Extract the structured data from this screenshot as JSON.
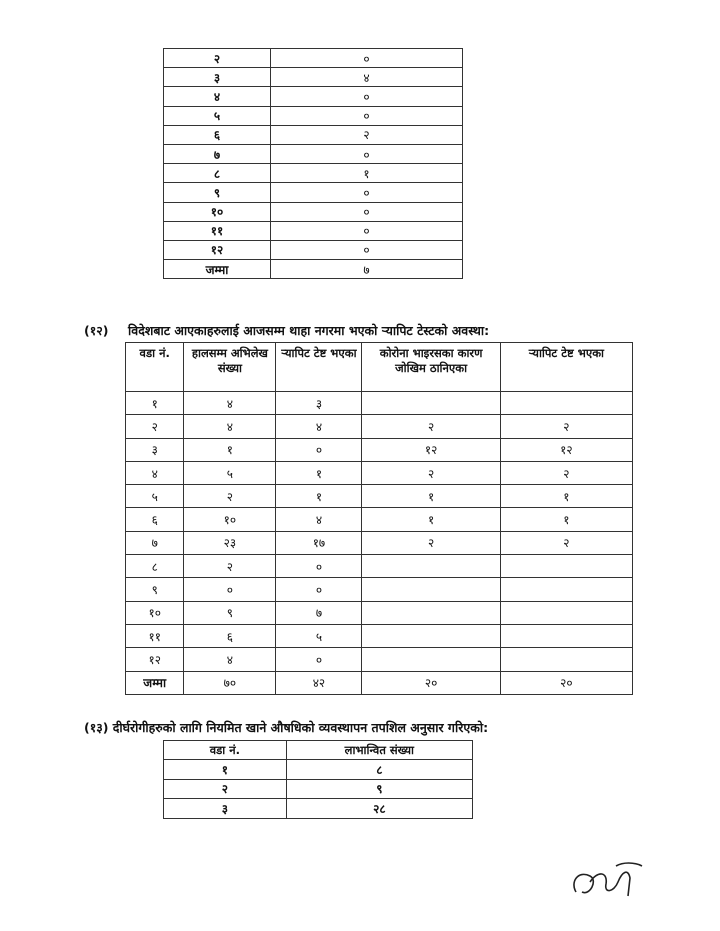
{
  "table_top": {
    "rows": [
      [
        "२",
        "०"
      ],
      [
        "३",
        "४"
      ],
      [
        "४",
        "०"
      ],
      [
        "५",
        "०"
      ],
      [
        "६",
        "२"
      ],
      [
        "७",
        "०"
      ],
      [
        "८",
        "१"
      ],
      [
        "९",
        "०"
      ],
      [
        "१०",
        "०"
      ],
      [
        "११",
        "०"
      ],
      [
        "१२",
        "०"
      ],
      [
        "जम्मा",
        "७"
      ]
    ]
  },
  "section12": {
    "number": "(१२)",
    "title": "विदेशबाट आएकाहरुलाई आजसम्म थाहा नगरमा भएको र्‍यापिट टेस्टको अवस्था:",
    "headers": [
      "वडा नं.",
      "हालसम्म अभिलेख संख्या",
      "र्‍यापिट टेष्ट भएका",
      "कोरोना भाइरसका कारण जोखिम ठानिएका",
      "र्‍यापिट टेष्ट भएका"
    ],
    "rows": [
      [
        "१",
        "४",
        "३",
        "",
        ""
      ],
      [
        "२",
        "४",
        "४",
        "२",
        "२"
      ],
      [
        "३",
        "१",
        "०",
        "१२",
        "१२"
      ],
      [
        "४",
        "५",
        "१",
        "२",
        "२"
      ],
      [
        "५",
        "२",
        "१",
        "१",
        "१"
      ],
      [
        "६",
        "१०",
        "४",
        "१",
        "१"
      ],
      [
        "७",
        "२३",
        "१७",
        "२",
        "२"
      ],
      [
        "८",
        "२",
        "०",
        "",
        ""
      ],
      [
        "९",
        "०",
        "०",
        "",
        ""
      ],
      [
        "१०",
        "९",
        "७",
        "",
        ""
      ],
      [
        "११",
        "६",
        "५",
        "",
        ""
      ],
      [
        "१२",
        "४",
        "०",
        "",
        ""
      ],
      [
        "जम्मा",
        "७०",
        "४२",
        "२०",
        "२०"
      ]
    ]
  },
  "section13": {
    "title": "(१३) दीर्घरोगीहरुको लागि नियमित खाने औषधिको व्यवस्थापन तपशिल अनुसार गरिएको:",
    "headers": [
      "वडा नं.",
      "लाभान्वित संख्या"
    ],
    "rows": [
      [
        "१",
        "८"
      ],
      [
        "२",
        "९"
      ],
      [
        "३",
        "२८"
      ]
    ]
  },
  "signature": {
    "type": "handwritten-signature"
  }
}
